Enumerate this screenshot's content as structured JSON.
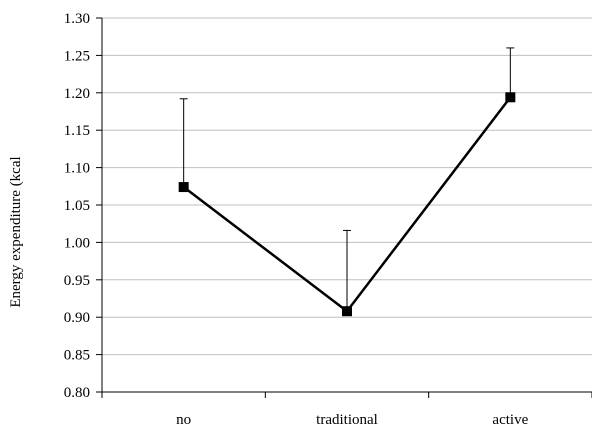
{
  "chart_data": {
    "type": "line",
    "title": "",
    "xlabel": "",
    "ylabel": "Energy expenditure (kcal",
    "categories": [
      "no",
      "traditional",
      "active"
    ],
    "series": [
      {
        "values": [
          1.074,
          0.908,
          1.194
        ],
        "error_upper": [
          1.192,
          1.016,
          1.26
        ],
        "color": "#000000",
        "marker": "square"
      }
    ],
    "ylim": [
      0.8,
      1.3
    ],
    "y_ticks": [
      "0.80",
      "0.85",
      "0.90",
      "0.95",
      "1.00",
      "1.05",
      "1.10",
      "1.15",
      "1.20",
      "1.25",
      "1.30"
    ],
    "grid": true,
    "grid_color": "#c0c0c0",
    "legend": "none"
  }
}
